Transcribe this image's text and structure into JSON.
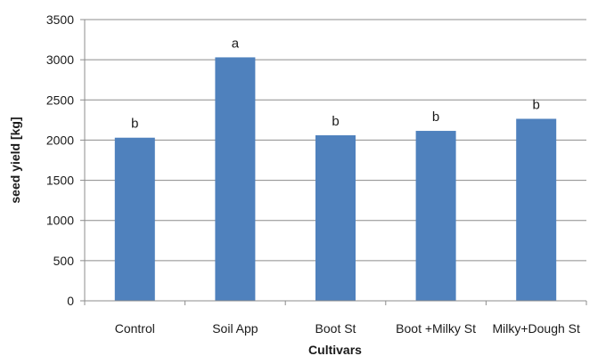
{
  "chart_data": {
    "type": "bar",
    "categories": [
      "Control",
      "Soil App",
      "Boot St",
      "Boot +Milky St",
      "Milky+Dough St"
    ],
    "values": [
      2030,
      3030,
      2060,
      2115,
      2265
    ],
    "bar_labels": [
      "b",
      "a",
      "b",
      "b",
      "b"
    ],
    "xlabel": "Cultivars",
    "ylabel": "seed yield [kg]",
    "ylim": [
      0,
      3500
    ],
    "yticks": [
      0,
      500,
      1000,
      1500,
      2000,
      2500,
      3000,
      3500
    ],
    "grid": true,
    "bar_color": "#4f81bd",
    "grid_color": "#8c8c8c",
    "axis_color": "#8c8c8c"
  }
}
